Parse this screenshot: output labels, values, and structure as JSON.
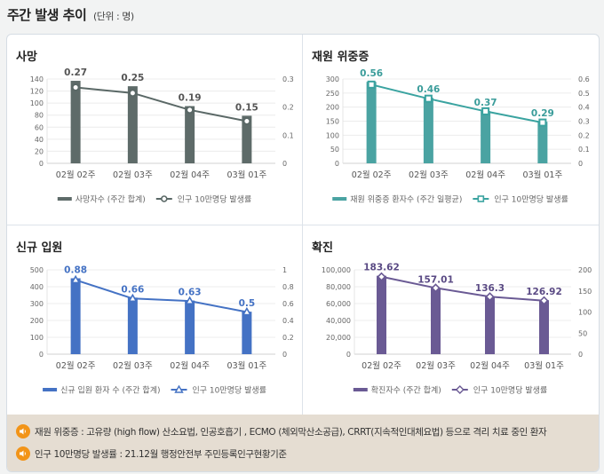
{
  "header": {
    "title": "주간 발생 추이",
    "unit": "(단위 : 명)"
  },
  "chart_data": [
    {
      "type": "bar",
      "title": "사망",
      "categories": [
        "02월 02주",
        "02월 03주",
        "02월 04주",
        "03월 01주"
      ],
      "series": [
        {
          "name": "사망자수 (주간 합계)",
          "type": "bar",
          "axis": "left",
          "values": [
            137,
            128,
            95,
            79
          ]
        },
        {
          "name": "인구 10만명당 발생률",
          "type": "line",
          "axis": "right",
          "marker": "circle",
          "values": [
            0.27,
            0.25,
            0.19,
            0.15
          ],
          "labels": [
            "0.27",
            "0.25",
            "0.19",
            "0.15"
          ]
        }
      ],
      "ylim_left": [
        0,
        140
      ],
      "yticks_left": [
        "0",
        "20",
        "40",
        "60",
        "80",
        "100",
        "120",
        "140"
      ],
      "ylim_right": [
        0,
        0.3
      ],
      "yticks_right": [
        "0",
        "0.1",
        "0.2",
        "0.3"
      ],
      "color": "#5e6b69",
      "line_color": "#5a6866",
      "label_color": "#555555",
      "legend": "bottom",
      "grid": true
    },
    {
      "type": "bar",
      "title": "재원 위중증",
      "categories": [
        "02월 02주",
        "02월 03주",
        "02월 04주",
        "03월 01주"
      ],
      "series": [
        {
          "name": "재원 위중증 환자수 (주간 일평균)",
          "type": "bar",
          "axis": "left",
          "values": [
            290,
            233,
            186,
            148
          ]
        },
        {
          "name": "인구 10만명당 발생률",
          "type": "line",
          "axis": "right",
          "marker": "square",
          "values": [
            0.56,
            0.46,
            0.37,
            0.29
          ],
          "labels": [
            "0.56",
            "0.46",
            "0.37",
            "0.29"
          ]
        }
      ],
      "ylim_left": [
        0,
        300
      ],
      "yticks_left": [
        "0",
        "50",
        "100",
        "150",
        "200",
        "250",
        "300"
      ],
      "ylim_right": [
        0,
        0.6
      ],
      "yticks_right": [
        "0",
        "0.1",
        "0.2",
        "0.3",
        "0.4",
        "0.5",
        "0.6"
      ],
      "color": "#4aa3a2",
      "line_color": "#3aa3a0",
      "label_color": "#3a9c9a",
      "legend": "bottom",
      "grid": true
    },
    {
      "type": "bar",
      "title": "신규 입원",
      "categories": [
        "02월 02주",
        "02월 03주",
        "02월 04주",
        "03월 01주"
      ],
      "series": [
        {
          "name": "신규 입원 환자 수 (주간 합계)",
          "type": "bar",
          "axis": "left",
          "values": [
            450,
            335,
            318,
            252
          ]
        },
        {
          "name": "인구 10만명당 발생률",
          "type": "line",
          "axis": "right",
          "marker": "triangle",
          "values": [
            0.88,
            0.66,
            0.63,
            0.5
          ],
          "labels": [
            "0.88",
            "0.66",
            "0.63",
            "0.5"
          ]
        }
      ],
      "ylim_left": [
        0,
        500
      ],
      "yticks_left": [
        "0",
        "100",
        "200",
        "300",
        "400",
        "500"
      ],
      "ylim_right": [
        0,
        1
      ],
      "yticks_right": [
        "0",
        "0.2",
        "0.4",
        "0.6",
        "0.8",
        "1"
      ],
      "color": "#4472c4",
      "line_color": "#4472c4",
      "label_color": "#4472c4",
      "legend": "bottom",
      "grid": true
    },
    {
      "type": "bar",
      "title": "확진",
      "categories": [
        "02월 02주",
        "02월 03주",
        "02월 04주",
        "03월 01주"
      ],
      "series": [
        {
          "name": "확진자수 (주간 합계)",
          "type": "bar",
          "axis": "left",
          "values": [
            93000,
            78500,
            68500,
            64000
          ]
        },
        {
          "name": "인구 10만명당 발생률",
          "type": "line",
          "axis": "right",
          "marker": "diamond",
          "values": [
            183.62,
            157.01,
            136.3,
            126.92
          ],
          "labels": [
            "183.62",
            "157.01",
            "136.3",
            "126.92"
          ]
        }
      ],
      "ylim_left": [
        0,
        100000
      ],
      "yticks_left": [
        "0",
        "20,000",
        "40,000",
        "60,000",
        "80,000",
        "100,000"
      ],
      "ylim_right": [
        0,
        200
      ],
      "yticks_right": [
        "0",
        "50",
        "100",
        "150",
        "200"
      ],
      "color": "#6a5a94",
      "line_color": "#6a5a94",
      "label_color": "#5a4a84",
      "legend": "bottom",
      "grid": true
    }
  ],
  "notes": [
    {
      "icon": "speaker-icon",
      "text": "재원 위중증 : 고유량 (high flow) 산소요법, 인공호흡기 , ECMO (체외막산소공급), CRRT(지속적인대체요법) 등으로 격리 치료 중인 환자"
    },
    {
      "icon": "speaker-icon",
      "text": "인구 10만명당 발생률 : 21.12월 행정안전부 주민등록인구현황기준"
    }
  ],
  "colors": {
    "background": "#f2f3f3",
    "note_bg": "#e5ddd2",
    "speaker": "#f29418"
  }
}
